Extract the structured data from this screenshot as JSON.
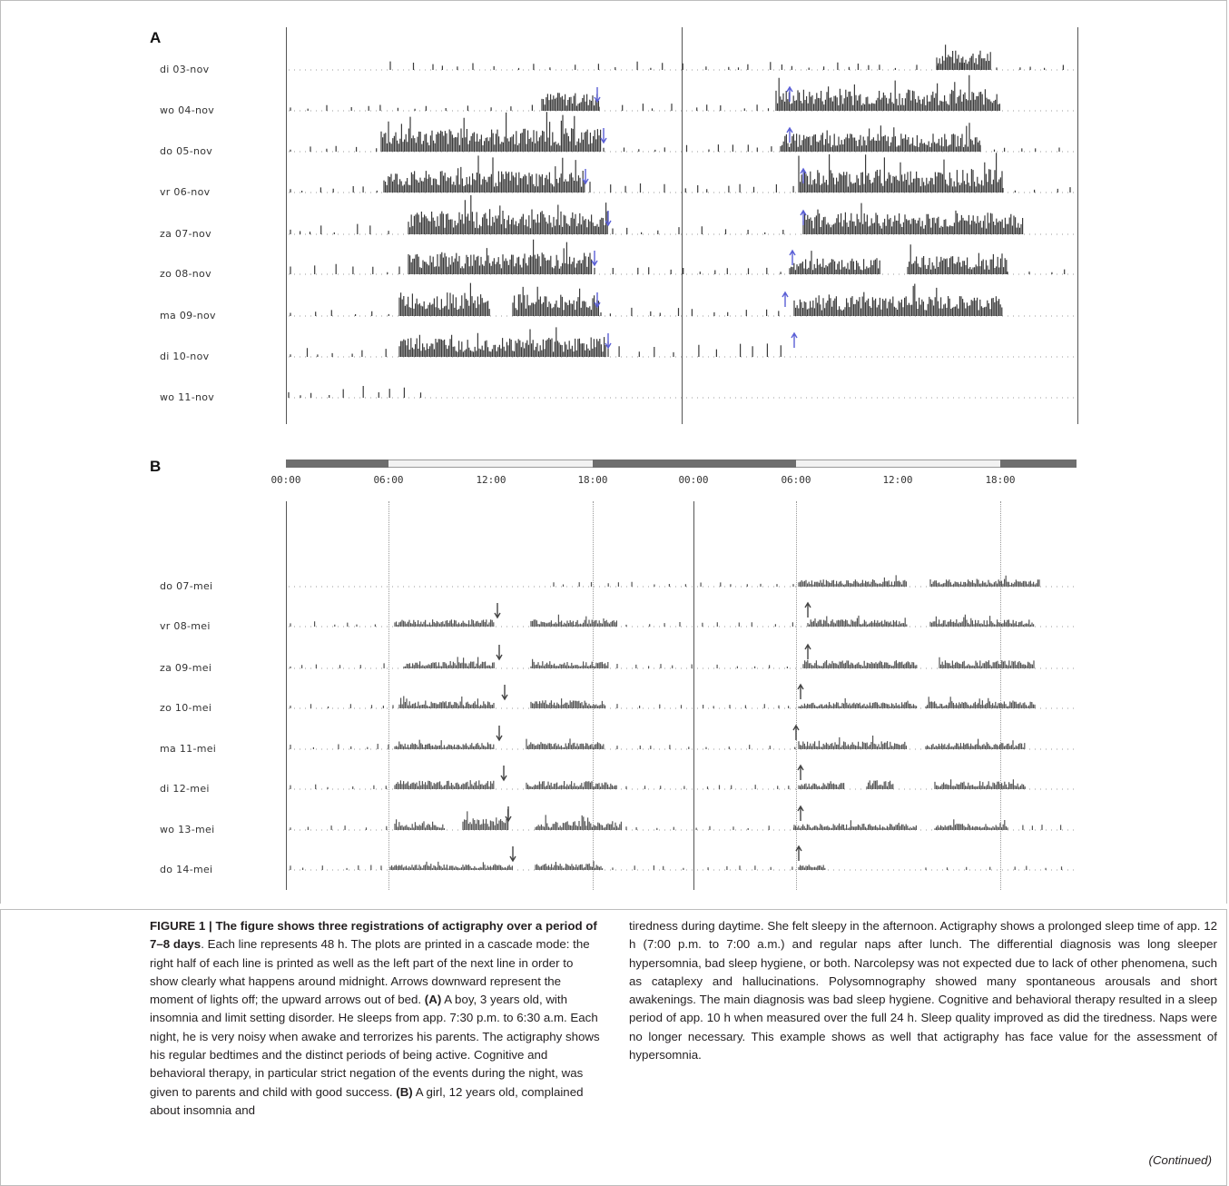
{
  "figure": {
    "panel_a": {
      "letter": "A",
      "rows": [
        "di 03-nov",
        "wo 04-nov",
        "do 05-nov",
        "vr 06-nov",
        "za 07-nov",
        "zo 08-nov",
        "ma 09-nov",
        "di 10-nov",
        "wo 11-nov"
      ]
    },
    "panel_b": {
      "letter": "B",
      "time_ticks": [
        "00:00",
        "06:00",
        "12:00",
        "18:00",
        "00:00",
        "06:00",
        "12:00",
        "18:00"
      ],
      "rows": [
        "do 07-mei",
        "vr 08-mei",
        "za 09-mei",
        "zo 10-mei",
        "ma 11-mei",
        "di 12-mei",
        "wo 13-mei",
        "do 14-mei"
      ]
    },
    "colors": {
      "activity": "#3a3a3a",
      "arrow_a": "#5a5fd6",
      "arrow_b": "#444444"
    }
  },
  "caption": {
    "label": "FIGURE 1 | ",
    "title": "The figure shows three registrations of actigraphy over a period of 7–8 days",
    "intro": ". Each line represents 48 h. The plots are printed in a cascade mode: the right half of each line is printed as well as the left part of the next line in order to show clearly what happens around midnight. Arrows downward represent the moment of lights off; the upward arrows out of bed. ",
    "a_label": "(A)",
    "a_text": " A boy, 3 years old, with insomnia and limit setting disorder. He sleeps from app. 7:30 p.m. to 6:30 a.m. Each night, he is very noisy when awake and terrorizes his parents. The actigraphy shows his regular bedtimes and the distinct periods of being active. Cognitive and behavioral therapy, in particular strict negation of the events during the night, was given to parents and child with good success. ",
    "b_label": "(B)",
    "b_text": " A girl, 12 years old, complained about insomnia and",
    "right_text": "tiredness during daytime. She felt sleepy in the afternoon. Actigraphy shows a prolonged sleep time of app. 12 h (7:00 p.m. to 7:00 a.m.) and regular naps after lunch. The differential diagnosis was long sleeper hypersomnia, bad sleep hygiene, or both. Narcolepsy was not expected due to lack of other phenomena, such as cataplexy and hallucinations. Polysomnography showed many spontaneous arousals and short awakenings. The main diagnosis was bad sleep hygiene. Cognitive and behavioral therapy resulted in a sleep period of app. 10 h when measured over the full 24 h. Sleep quality improved as did the tiredness. Naps were no longer necessary. This example shows as well that actigraphy has face value for the assessment of hypersomnia.",
    "continued": "(Continued)"
  }
}
